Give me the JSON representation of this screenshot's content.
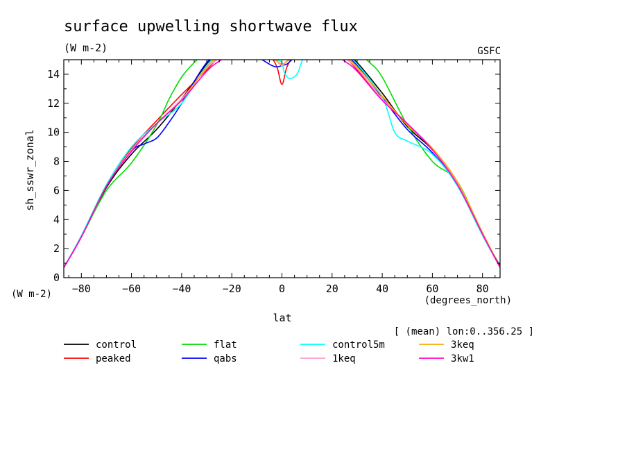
{
  "header": {
    "title": "surface upwelling shortwave flux",
    "units": "(W m-2)",
    "institution": "GSFC"
  },
  "footer": {
    "y_units": "(W m-2)",
    "x_units": "(degrees_north)",
    "mean_note": "[ (mean) lon:0..356.25 ]"
  },
  "chart_data": {
    "type": "line",
    "title": "surface upwelling shortwave flux",
    "xlabel": "lat",
    "ylabel": "sh_sswr_zonal",
    "xlim": [
      -87,
      87
    ],
    "ylim": [
      0,
      15
    ],
    "xticks": [
      -80,
      -60,
      -40,
      -20,
      0,
      20,
      40,
      60,
      80
    ],
    "yticks": [
      0,
      2,
      4,
      6,
      8,
      10,
      12,
      14
    ],
    "grid": false,
    "legend_position": "bottom",
    "series": [
      {
        "name": "control",
        "color": "#000000",
        "x": [
          -87,
          -80,
          -70,
          -60,
          -50,
          -40,
          -30,
          -25,
          -20,
          -15,
          -10,
          -5,
          -2,
          0,
          2,
          5,
          10,
          15,
          20,
          25,
          30,
          40,
          50,
          60,
          70,
          80,
          87
        ],
        "y": [
          0.7,
          2.8,
          6.2,
          8.5,
          10.2,
          12.3,
          14.7,
          15.4,
          15.6,
          15.7,
          15.5,
          15.2,
          14.9,
          14.6,
          14.9,
          15.2,
          15.5,
          15.7,
          15.6,
          15.4,
          14.8,
          12.7,
          10.4,
          8.8,
          6.5,
          3.0,
          0.8
        ]
      },
      {
        "name": "peaked",
        "color": "#ff0000",
        "x": [
          -87,
          -80,
          -70,
          -60,
          -50,
          -40,
          -30,
          -25,
          -20,
          -15,
          -10,
          -5,
          -2,
          0,
          2,
          5,
          10,
          15,
          20,
          25,
          30,
          40,
          50,
          60,
          70,
          80,
          87
        ],
        "y": [
          0.7,
          2.8,
          6.3,
          8.9,
          10.8,
          12.6,
          14.3,
          15.2,
          15.6,
          15.7,
          15.6,
          15.3,
          14.5,
          13.3,
          14.5,
          15.3,
          15.6,
          15.7,
          15.6,
          15.2,
          14.3,
          12.3,
          10.6,
          8.8,
          6.5,
          3.0,
          0.7
        ]
      },
      {
        "name": "flat",
        "color": "#00dd00",
        "x": [
          -87,
          -80,
          -70,
          -60,
          -50,
          -45,
          -40,
          -35,
          -30,
          -25,
          -20,
          -15,
          -10,
          -5,
          0,
          5,
          10,
          15,
          20,
          25,
          30,
          35,
          40,
          50,
          60,
          70,
          80,
          87
        ],
        "y": [
          0.7,
          2.8,
          6.0,
          7.9,
          10.5,
          12.3,
          13.8,
          14.8,
          15.5,
          15.8,
          15.8,
          15.8,
          15.7,
          15.6,
          15.2,
          15.6,
          15.7,
          15.8,
          15.8,
          15.8,
          15.5,
          14.8,
          13.8,
          10.5,
          8.0,
          6.6,
          3.0,
          0.7
        ]
      },
      {
        "name": "qabs",
        "color": "#0000ff",
        "x": [
          -87,
          -80,
          -70,
          -60,
          -55,
          -50,
          -45,
          -40,
          -35,
          -30,
          -25,
          -20,
          -15,
          -10,
          -7,
          -4,
          -2,
          0,
          2,
          4,
          7,
          10,
          15,
          20,
          25,
          30,
          40,
          50,
          60,
          70,
          80,
          87
        ],
        "y": [
          0.7,
          2.8,
          6.3,
          8.7,
          9.2,
          9.6,
          10.7,
          12.0,
          13.5,
          14.8,
          15.5,
          15.6,
          15.5,
          15.2,
          14.9,
          14.6,
          14.5,
          14.6,
          14.7,
          15.0,
          15.4,
          15.6,
          15.7,
          15.6,
          15.3,
          14.6,
          12.4,
          10.2,
          8.6,
          6.4,
          3.0,
          0.7
        ]
      },
      {
        "name": "control5m",
        "color": "#00ffff",
        "x": [
          -87,
          -80,
          -70,
          -60,
          -50,
          -40,
          -30,
          -25,
          -20,
          -15,
          -10,
          -5,
          -2,
          0,
          1,
          3,
          6,
          8,
          10,
          15,
          20,
          25,
          30,
          40,
          45,
          50,
          60,
          70,
          80,
          87
        ],
        "y": [
          0.7,
          2.9,
          6.4,
          9.0,
          10.6,
          12.0,
          14.6,
          15.3,
          15.6,
          15.7,
          15.6,
          15.4,
          15.0,
          14.8,
          14.1,
          13.7,
          14.0,
          14.9,
          15.5,
          15.7,
          15.6,
          15.3,
          14.7,
          12.4,
          10.0,
          9.4,
          8.5,
          6.3,
          2.9,
          0.7
        ]
      },
      {
        "name": "1keq",
        "color": "#ff99cc",
        "x": [
          -87,
          -80,
          -70,
          -60,
          -50,
          -40,
          -30,
          -25,
          -20,
          -15,
          -10,
          -5,
          -2,
          0,
          2,
          5,
          10,
          15,
          20,
          25,
          30,
          40,
          50,
          60,
          70,
          80,
          87
        ],
        "y": [
          0.7,
          2.8,
          6.3,
          8.8,
          10.6,
          12.3,
          14.4,
          15.1,
          15.6,
          15.7,
          15.6,
          15.3,
          14.9,
          14.6,
          14.9,
          15.3,
          15.6,
          15.7,
          15.6,
          15.1,
          14.4,
          12.3,
          10.6,
          8.9,
          6.5,
          3.0,
          0.7
        ]
      },
      {
        "name": "3keq",
        "color": "#ffaa00",
        "x": [
          -87,
          -80,
          -70,
          -60,
          -50,
          -40,
          -30,
          -25,
          -20,
          -15,
          -10,
          -5,
          -2,
          0,
          2,
          5,
          10,
          15,
          20,
          25,
          30,
          40,
          50,
          60,
          70,
          80,
          87
        ],
        "y": [
          0.7,
          2.8,
          6.3,
          8.7,
          10.6,
          12.2,
          14.5,
          15.2,
          15.6,
          15.7,
          15.6,
          15.3,
          14.9,
          14.7,
          14.9,
          15.3,
          15.6,
          15.7,
          15.6,
          15.2,
          14.5,
          12.5,
          10.5,
          8.9,
          6.6,
          3.1,
          0.7
        ]
      },
      {
        "name": "3kw1",
        "color": "#ff00cc",
        "x": [
          -87,
          -80,
          -70,
          -60,
          -50,
          -40,
          -30,
          -25,
          -20,
          -15,
          -10,
          -5,
          -2,
          0,
          2,
          5,
          10,
          15,
          20,
          25,
          30,
          40,
          50,
          60,
          70,
          80,
          87
        ],
        "y": [
          0.7,
          2.8,
          6.3,
          8.7,
          10.6,
          12.2,
          14.2,
          14.9,
          15.4,
          15.6,
          15.6,
          15.5,
          15.5,
          15.4,
          15.5,
          15.5,
          15.6,
          15.6,
          15.4,
          14.9,
          14.2,
          12.2,
          10.6,
          8.8,
          6.4,
          3.0,
          0.7
        ]
      }
    ]
  }
}
